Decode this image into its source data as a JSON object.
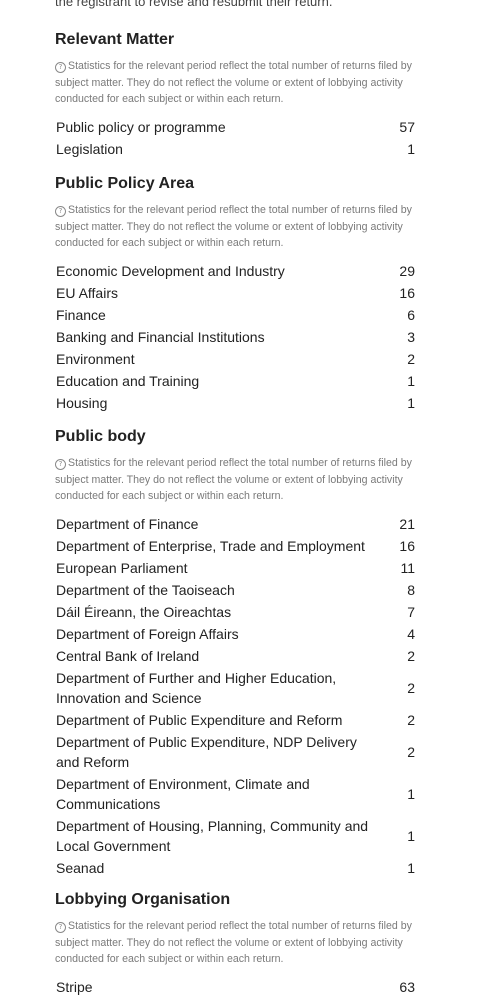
{
  "top_text": "the registrant to revise and resubmit their return.",
  "note_text": "Statistics for the relevant period reflect the total number of returns filed by subject matter. They do not reflect the volume or extent of lobbying activity conducted for each subject or within each return.",
  "icons": {
    "help": "question-circle-icon"
  },
  "sections": [
    {
      "title": "Relevant Matter",
      "rows": [
        {
          "label": "Public policy or programme",
          "count": "57"
        },
        {
          "label": "Legislation",
          "count": "1"
        }
      ]
    },
    {
      "title": "Public Policy Area",
      "rows": [
        {
          "label": "Economic Development and Industry",
          "count": "29"
        },
        {
          "label": "EU Affairs",
          "count": "16"
        },
        {
          "label": "Finance",
          "count": "6"
        },
        {
          "label": "Banking and Financial Institutions",
          "count": "3"
        },
        {
          "label": "Environment",
          "count": "2"
        },
        {
          "label": "Education and Training",
          "count": "1"
        },
        {
          "label": "Housing",
          "count": "1"
        }
      ]
    },
    {
      "title": "Public body",
      "rows": [
        {
          "label": "Department of Finance",
          "count": "21"
        },
        {
          "label": "Department of Enterprise, Trade and Employment",
          "count": "16"
        },
        {
          "label": "European Parliament",
          "count": "11"
        },
        {
          "label": "Department of the Taoiseach",
          "count": "8"
        },
        {
          "label": "Dáil Éireann, the Oireachtas",
          "count": "7"
        },
        {
          "label": "Department of Foreign Affairs",
          "count": "4"
        },
        {
          "label": "Central Bank of Ireland",
          "count": "2"
        },
        {
          "label": "Department of Further and Higher Education, Innovation and Science",
          "count": "2"
        },
        {
          "label": "Department of Public Expenditure and Reform",
          "count": "2"
        },
        {
          "label": "Department of Public Expenditure, NDP Delivery and Reform",
          "count": "2"
        },
        {
          "label": "Department of Environment, Climate and Communications",
          "count": "1"
        },
        {
          "label": "Department of Housing, Planning, Community and Local Government",
          "count": "1"
        },
        {
          "label": "Seanad",
          "count": "1"
        }
      ]
    },
    {
      "title": "Lobbying Organisation",
      "rows": [
        {
          "label": "Stripe",
          "count": "63"
        }
      ]
    }
  ]
}
